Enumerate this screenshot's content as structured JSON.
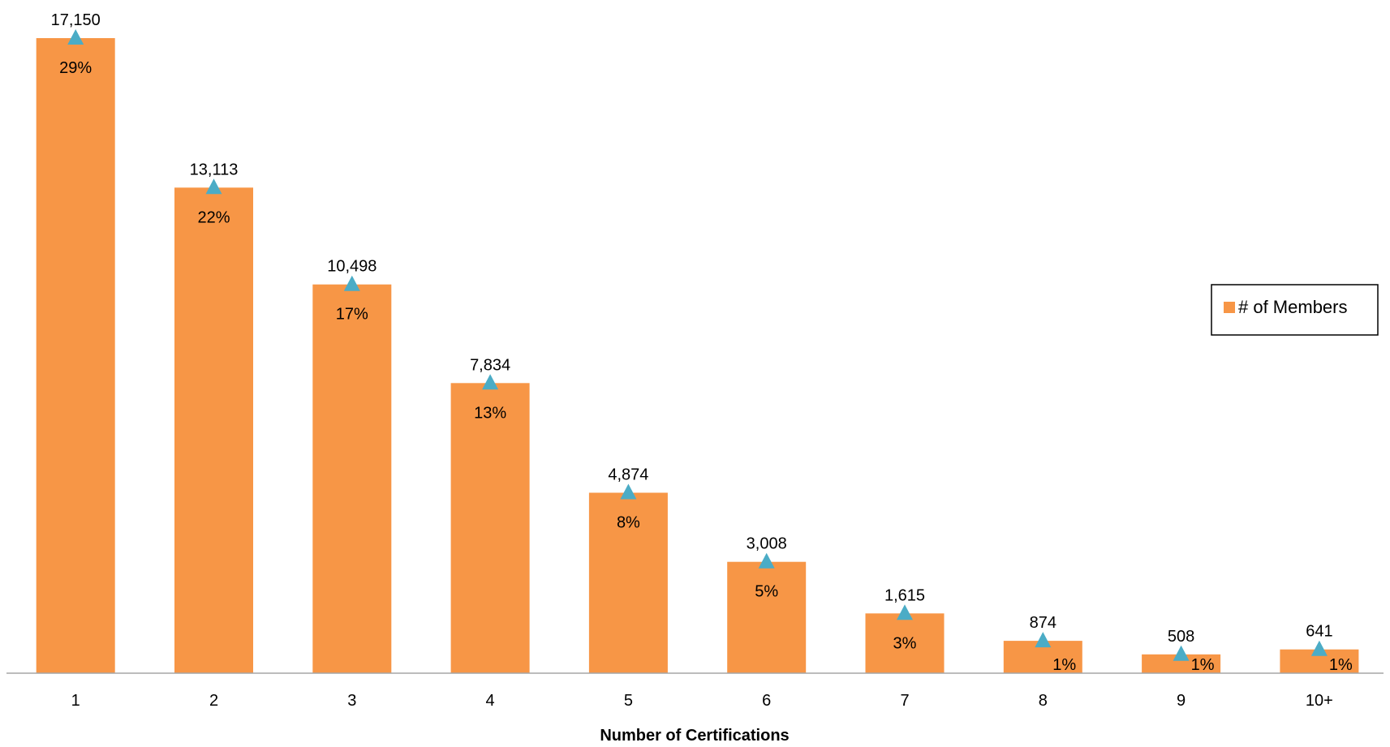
{
  "chart_data": {
    "type": "bar",
    "xlabel": "Number of Certifications",
    "ylabel": "",
    "categories": [
      "1",
      "2",
      "3",
      "4",
      "5",
      "6",
      "7",
      "8",
      "9",
      "10+"
    ],
    "series": [
      {
        "name": "# of Members",
        "values": [
          17150,
          13113,
          10498,
          7834,
          4874,
          3008,
          1615,
          874,
          508,
          641
        ],
        "value_labels": [
          "17,150",
          "13,113",
          "10,498",
          "7,834",
          "4,874",
          "3,008",
          "1,615",
          "874",
          "508",
          "641"
        ],
        "percent_labels": [
          "29%",
          "22%",
          "17%",
          "13%",
          "8%",
          "5%",
          "3%",
          "1%",
          "1%",
          "1%"
        ]
      }
    ],
    "ylim": [
      0,
      17150
    ],
    "grid": false,
    "legend_position": "right",
    "colors": {
      "bar": "#F79646",
      "marker": "#4BACC6",
      "axis": "#A6A6A6"
    }
  }
}
